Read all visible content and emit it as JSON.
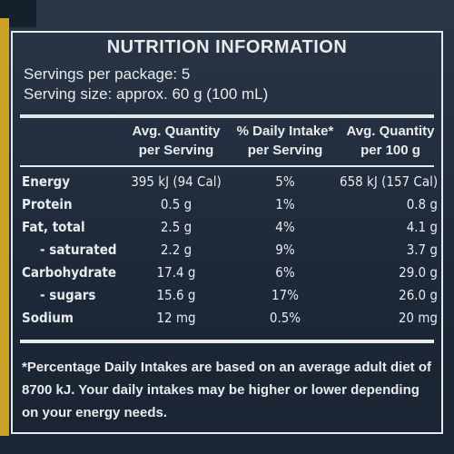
{
  "colors": {
    "background": "#1f2a3a",
    "text": "#e8ebee",
    "accent_edge": "#c9a227"
  },
  "panel": {
    "title": "NUTRITION INFORMATION",
    "servings_per_package": "Servings per package: 5",
    "serving_size": "Serving size: approx. 60 g (100 mL)"
  },
  "columns": {
    "per_serving_1": "Avg. Quantity",
    "per_serving_2": "per Serving",
    "daily_intake_1": "% Daily Intake*",
    "daily_intake_2": "per Serving",
    "per_100g_1": "Avg. Quantity",
    "per_100g_2": "per 100 g"
  },
  "rows": [
    {
      "name": "Energy",
      "per_serving": "395 kJ (94 Cal)",
      "daily_intake": "5%",
      "per_100g": "658 kJ (157 Cal)"
    },
    {
      "name": "Protein",
      "per_serving": "0.5 g",
      "daily_intake": "1%",
      "per_100g": "0.8 g"
    },
    {
      "name": "Fat, total",
      "per_serving": "2.5 g",
      "daily_intake": "4%",
      "per_100g": "4.1 g"
    },
    {
      "name": "- saturated",
      "per_serving": "2.2 g",
      "daily_intake": "9%",
      "per_100g": "3.7 g"
    },
    {
      "name": "Carbohydrate",
      "per_serving": "17.4 g",
      "daily_intake": "6%",
      "per_100g": "29.0 g"
    },
    {
      "name": "- sugars",
      "per_serving": "15.6 g",
      "daily_intake": "17%",
      "per_100g": "26.0 g"
    },
    {
      "name": "Sodium",
      "per_serving": "12 mg",
      "daily_intake": "0.5%",
      "per_100g": "20 mg"
    }
  ],
  "footnote": "*Percentage Daily Intakes are based on an average adult diet of 8700 kJ. Your daily intakes may be higher or lower depending on your energy needs."
}
